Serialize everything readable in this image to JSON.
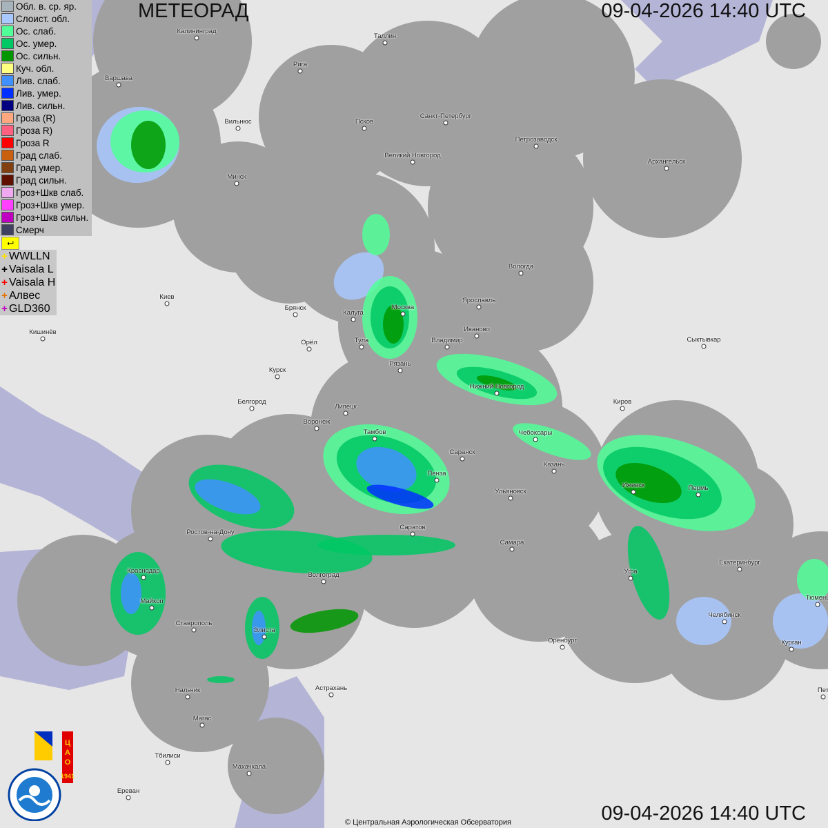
{
  "header": {
    "title": "МЕТЕОРАД",
    "timestamp_top": "09-04-2026  14:40 UTC",
    "timestamp_bottom": "09-04-2026  14:40 UTC"
  },
  "legend": [
    {
      "label": "Обл. в. ср. яр.",
      "color": "#a8b4bc"
    },
    {
      "label": "Слоист. обл.",
      "color": "#a8c8ff"
    },
    {
      "label": "Ос. слаб.",
      "color": "#50ff98"
    },
    {
      "label": "Ос. умер.",
      "color": "#00c864"
    },
    {
      "label": "Ос. сильн.",
      "color": "#009600"
    },
    {
      "label": "Куч. обл.",
      "color": "#ffff80"
    },
    {
      "label": "Лив. слаб.",
      "color": "#4090ff"
    },
    {
      "label": "Лив. умер.",
      "color": "#0030ff"
    },
    {
      "label": "Лив. сильн.",
      "color": "#000080"
    },
    {
      "label": "Гроза (R)",
      "color": "#ffa880"
    },
    {
      "label": "Гроза R)",
      "color": "#ff6080"
    },
    {
      "label": "Гроза R",
      "color": "#ff0000"
    },
    {
      "label": "Град слаб.",
      "color": "#c86010"
    },
    {
      "label": "Град умер.",
      "color": "#804010"
    },
    {
      "label": "Град сильн.",
      "color": "#601000"
    },
    {
      "label": "Гроз+Шкв слаб.",
      "color": "#f0a8f0"
    },
    {
      "label": "Гроз+Шкв умер.",
      "color": "#ff40ff"
    },
    {
      "label": "Гроз+Шкв сильн.",
      "color": "#c000c0"
    },
    {
      "label": "Смерч",
      "color": "#404060"
    }
  ],
  "flag_icon": "flag-icon",
  "lightning": [
    {
      "label": "WWLLN",
      "color": "#ffe000"
    },
    {
      "label": "Vaisala L",
      "color": "#000000"
    },
    {
      "label": "Vaisala H",
      "color": "#ff0000"
    },
    {
      "label": "Алвес",
      "color": "#e07000"
    },
    {
      "label": "GLD360",
      "color": "#c000c0"
    }
  ],
  "cities": [
    "Калининград",
    "Таллин",
    "Рига",
    "Варшава",
    "Вильнюс",
    "Псков",
    "Санкт-Петербург",
    "Петрозаводск",
    "Архангельск",
    "Великий Новгород",
    "Минск",
    "Вологда",
    "Ярославль",
    "Москва",
    "Калуга",
    "Брянск",
    "Иваново",
    "Владимир",
    "Тула",
    "Орёл",
    "Киев",
    "Кишинёв",
    "Рязань",
    "Сыктывкар",
    "Курск",
    "Нижний Новгород",
    "Киров",
    "Белгород",
    "Липецк",
    "Воронеж",
    "Тамбов",
    "Чебоксары",
    "Саранск",
    "Казань",
    "Пенза",
    "Ижевск",
    "Пермь",
    "Ульяновск",
    "Ростов-на-Дону",
    "Саратов",
    "Самара",
    "Екатеринбург",
    "Краснодар",
    "Уфа",
    "Волгоград",
    "Тюмень",
    "Майкоп",
    "Челябинск",
    "Ставрополь",
    "Элиста",
    "Оренбург",
    "Курган",
    "Астрахань",
    "Нальчик",
    "Магас",
    "Тбилиси",
    "Махачкала",
    "Ереван",
    "Пет"
  ],
  "logo": {
    "org": "РОСГИДРОМЕТ",
    "org_en": "ROSHYDROMET",
    "cao": "ЦАО",
    "year": "1941"
  },
  "copyright": "© Центральная Аэрологическая Обсерватория",
  "colors": {
    "coverage": "#a0a0a0",
    "land": "#e6e6e6",
    "water": "#b4b4d6"
  }
}
